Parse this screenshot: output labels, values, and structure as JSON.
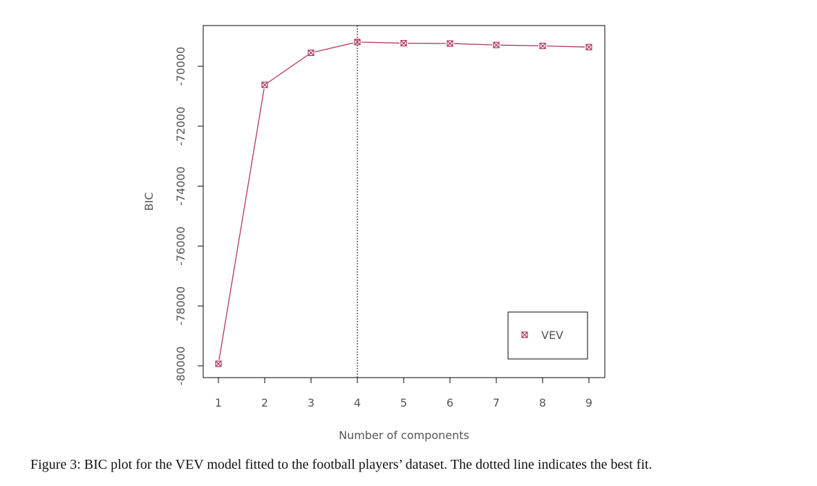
{
  "chart_data": {
    "type": "line",
    "xlabel": "Number of components",
    "ylabel": "BIC",
    "x": [
      1,
      2,
      3,
      4,
      5,
      6,
      7,
      8,
      9
    ],
    "xlim": [
      1,
      9
    ],
    "ylim": [
      -80000,
      -70000
    ],
    "y_ticks": [
      -80000,
      -78000,
      -76000,
      -74000,
      -72000,
      -70000
    ],
    "y_tick_labels": [
      "-80000",
      "-78000",
      "-76000",
      "-74000",
      "-72000",
      "-70000"
    ],
    "x_tick_labels": [
      "1",
      "2",
      "3",
      "4",
      "5",
      "6",
      "7",
      "8",
      "9"
    ],
    "series": [
      {
        "name": "VEV",
        "values": [
          -79930,
          -70620,
          -69550,
          -69190,
          -69230,
          -69240,
          -69290,
          -69320,
          -69360
        ],
        "color": "#b5325a",
        "marker": "boxed-x"
      }
    ],
    "best_fit_x": 4,
    "best_fit_line_style": "dotted",
    "legend": {
      "position": "bottom-right",
      "entries": [
        "VEV"
      ]
    },
    "grid": false
  },
  "caption": "Figure 3: BIC plot for the VEV model fitted to the football players’ dataset. The dotted line indicates the best fit."
}
